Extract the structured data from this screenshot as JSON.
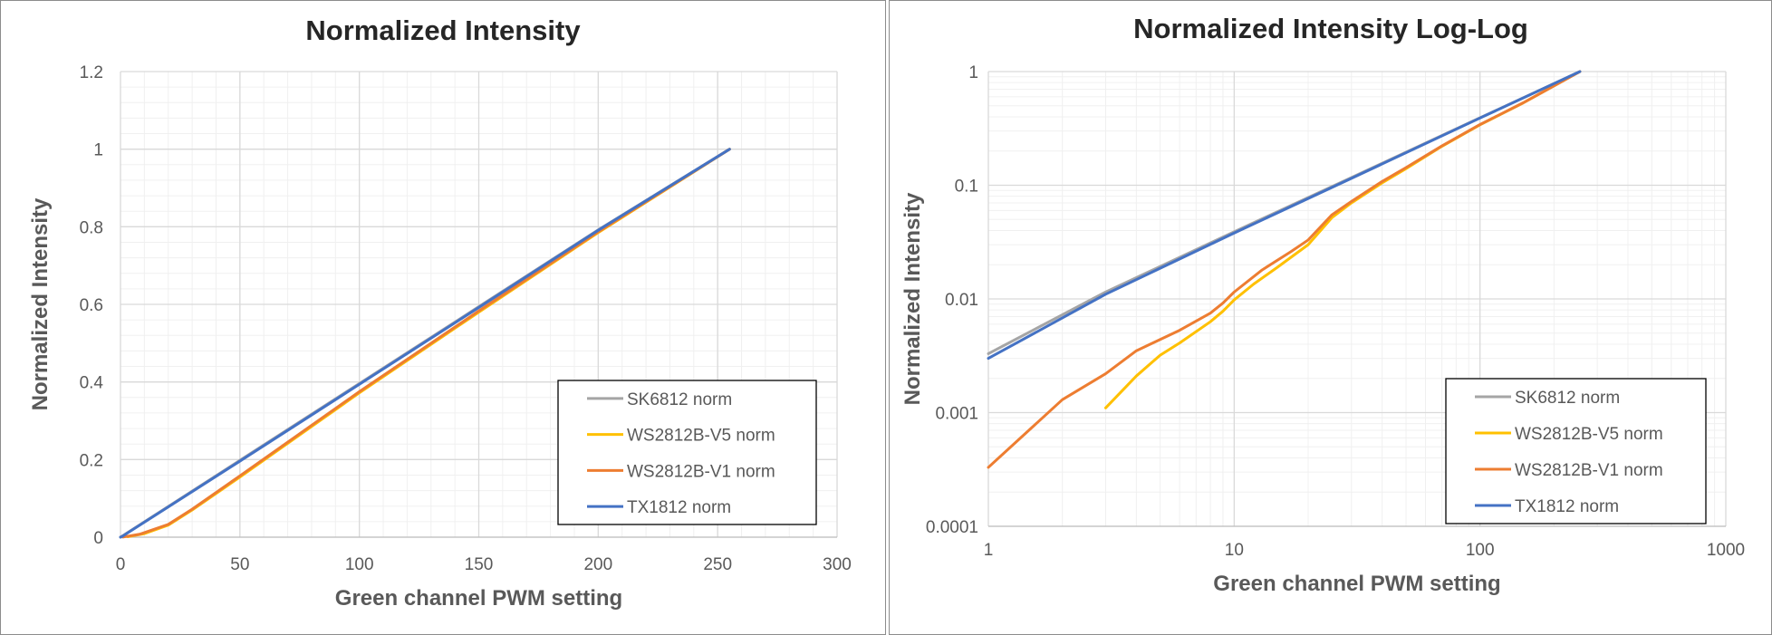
{
  "chart_data": [
    {
      "type": "line",
      "title": "Normalized Intensity",
      "xlabel": "Green channel PWM setting",
      "ylabel": "Normalized Intensity",
      "xlim": [
        0,
        300
      ],
      "ylim": [
        0,
        1.2
      ],
      "x_ticks": [
        "0",
        "50",
        "100",
        "150",
        "200",
        "250",
        "300"
      ],
      "y_ticks": [
        "0",
        "0.2",
        "0.4",
        "0.6",
        "0.8",
        "1",
        "1.2"
      ],
      "grid": true,
      "minor_grid": true,
      "legend_position": "bottom-right",
      "series": [
        {
          "name": "SK6812 norm",
          "color": "#a5a5a5",
          "points": [
            [
              0,
              0.0
            ],
            [
              20,
              0.079
            ],
            [
              50,
              0.198
            ],
            [
              100,
              0.396
            ],
            [
              150,
              0.594
            ],
            [
              200,
              0.792
            ],
            [
              255,
              1.0
            ]
          ]
        },
        {
          "name": "WS2812B-V5 norm",
          "color": "#ffc000",
          "points": [
            [
              3,
              0.0011
            ],
            [
              10,
              0.009
            ],
            [
              20,
              0.031
            ],
            [
              30,
              0.07
            ],
            [
              50,
              0.155
            ],
            [
              100,
              0.372
            ],
            [
              150,
              0.58
            ],
            [
              200,
              0.785
            ],
            [
              255,
              1.0
            ]
          ]
        },
        {
          "name": "WS2812B-V1 norm",
          "color": "#ed7d31",
          "points": [
            [
              1,
              0.00033
            ],
            [
              2,
              0.0013
            ],
            [
              8,
              0.0075
            ],
            [
              20,
              0.033
            ],
            [
              30,
              0.072
            ],
            [
              50,
              0.158
            ],
            [
              100,
              0.375
            ],
            [
              150,
              0.583
            ],
            [
              200,
              0.787
            ],
            [
              255,
              1.0
            ]
          ]
        },
        {
          "name": "TX1812 norm",
          "color": "#4472c4",
          "points": [
            [
              0,
              0.0
            ],
            [
              1,
              0.003
            ],
            [
              3,
              0.011
            ],
            [
              20,
              0.078
            ],
            [
              50,
              0.196
            ],
            [
              100,
              0.394
            ],
            [
              150,
              0.592
            ],
            [
              200,
              0.791
            ],
            [
              255,
              1.0
            ]
          ]
        }
      ]
    },
    {
      "type": "line",
      "title": "Normalized Intensity Log-Log",
      "xlabel": "Green channel PWM setting",
      "ylabel": "Normalized Intensity",
      "x_scale": "log",
      "y_scale": "log",
      "xlim": [
        1,
        1000
      ],
      "ylim": [
        0.0001,
        1
      ],
      "x_ticks": [
        "1",
        "10",
        "100",
        "1000"
      ],
      "y_ticks": [
        "0.0001",
        "0.001",
        "0.01",
        "0.1",
        "1"
      ],
      "grid": true,
      "minor_grid": true,
      "legend_position": "bottom-right",
      "series": [
        {
          "name": "SK6812 norm",
          "color": "#a5a5a5",
          "points": [
            [
              1,
              0.0033
            ],
            [
              3,
              0.0115
            ],
            [
              10,
              0.039
            ],
            [
              30,
              0.117
            ],
            [
              100,
              0.392
            ],
            [
              255,
              1.0
            ]
          ]
        },
        {
          "name": "WS2812B-V5 norm",
          "color": "#ffc000",
          "points": [
            [
              3,
              0.0011
            ],
            [
              4,
              0.0021
            ],
            [
              5,
              0.0032
            ],
            [
              6,
              0.0041
            ],
            [
              8,
              0.0063
            ],
            [
              9,
              0.0078
            ],
            [
              10,
              0.0098
            ],
            [
              12,
              0.0135
            ],
            [
              15,
              0.019
            ],
            [
              20,
              0.03
            ],
            [
              25,
              0.052
            ],
            [
              30,
              0.07
            ],
            [
              40,
              0.105
            ],
            [
              50,
              0.14
            ],
            [
              70,
              0.22
            ],
            [
              100,
              0.34
            ],
            [
              150,
              0.53
            ],
            [
              255,
              1.0
            ]
          ]
        },
        {
          "name": "WS2812B-V1 norm",
          "color": "#ed7d31",
          "points": [
            [
              1,
              0.00033
            ],
            [
              2,
              0.0013
            ],
            [
              3,
              0.0022
            ],
            [
              4,
              0.0035
            ],
            [
              6,
              0.0053
            ],
            [
              8,
              0.0075
            ],
            [
              9,
              0.0092
            ],
            [
              10,
              0.0115
            ],
            [
              13,
              0.018
            ],
            [
              17,
              0.026
            ],
            [
              20,
              0.033
            ],
            [
              25,
              0.055
            ],
            [
              30,
              0.072
            ],
            [
              40,
              0.108
            ],
            [
              50,
              0.143
            ],
            [
              70,
              0.222
            ],
            [
              100,
              0.342
            ],
            [
              150,
              0.532
            ],
            [
              255,
              1.0
            ]
          ]
        },
        {
          "name": "TX1812 norm",
          "color": "#4472c4",
          "points": [
            [
              1,
              0.003
            ],
            [
              3,
              0.011
            ],
            [
              10,
              0.038
            ],
            [
              30,
              0.115
            ],
            [
              100,
              0.39
            ],
            [
              255,
              1.0
            ]
          ]
        }
      ]
    }
  ]
}
